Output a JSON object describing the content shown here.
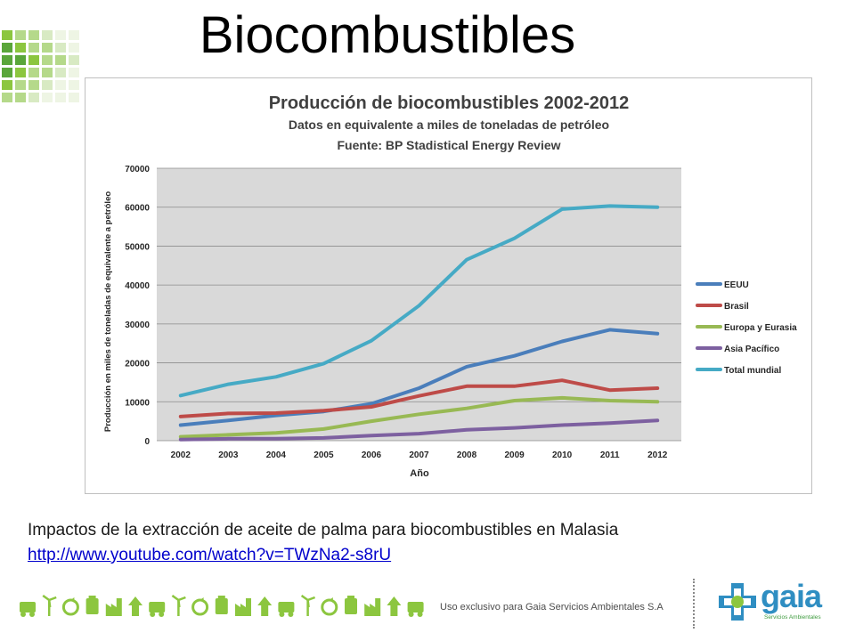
{
  "slide": {
    "title": "Biocombustibles",
    "caption": "Impactos de la extracción de aceite de palma para biocombustibles en Malasia",
    "link": "http://www.youtube.com/watch?v=TWzNa2-s8rU"
  },
  "footer": {
    "text": "Uso exclusivo para Gaia Servicios Ambientales S.A",
    "logo_word": "gaia",
    "logo_sub": "Servicios Ambientales",
    "icons": [
      "truck-icon",
      "wind-turbine-icon",
      "recycle-icon",
      "power-plug-icon",
      "factory-icon",
      "shopping-cart-icon",
      "trash-bin-icon",
      "palm-tree-icon",
      "airplane-icon",
      "battery-icon",
      "bus-icon",
      "bicycle-icon",
      "house-icon",
      "globe-icon",
      "bottle-icon",
      "car-icon",
      "hammer-icon",
      "sun-icon",
      "landscape-icon"
    ]
  },
  "colors": {
    "EEUU": "#4a7ebb",
    "Brasil": "#be4b48",
    "Europa y Eurasia": "#98b954",
    "Asia Pacífico": "#7d60a0",
    "Total mundial": "#46aac5",
    "plot_bg": "#d9d9d9",
    "logo_green": "#8cc63f",
    "gaia_blue": "#2f8ec2"
  },
  "chart_data": {
    "type": "line",
    "title": "Producción de biocombustibles 2002-2012",
    "subtitle_1": "Datos en equivalente a miles de toneladas de petróleo",
    "subtitle_2": "Fuente: BP Stadistical Energy Review",
    "xlabel": "Año",
    "ylabel": "Producción en miles de toneladas de equivalente a petróleo",
    "categories": [
      "2002",
      "2003",
      "2004",
      "2005",
      "2006",
      "2007",
      "2008",
      "2009",
      "2010",
      "2011",
      "2012"
    ],
    "ylim": [
      0,
      70000
    ],
    "yticks": [
      "0",
      "10000",
      "20000",
      "30000",
      "40000",
      "50000",
      "60000",
      "70000"
    ],
    "grid": true,
    "legend_position": "right",
    "series": [
      {
        "name": "EEUU",
        "values": [
          4000,
          5200,
          6500,
          7500,
          9500,
          13500,
          19000,
          21800,
          25500,
          28500,
          27500
        ]
      },
      {
        "name": "Brasil",
        "values": [
          6200,
          7000,
          7100,
          7700,
          8700,
          11500,
          14000,
          14000,
          15500,
          13000,
          13500
        ]
      },
      {
        "name": "Europa y Eurasia",
        "values": [
          1000,
          1500,
          2000,
          3000,
          5000,
          6800,
          8300,
          10300,
          11000,
          10300,
          10000
        ]
      },
      {
        "name": "Asia Pacífico",
        "values": [
          300,
          500,
          500,
          700,
          1300,
          1800,
          2800,
          3300,
          4000,
          4500,
          5200
        ]
      },
      {
        "name": "Total mundial",
        "values": [
          11600,
          14500,
          16400,
          19800,
          25700,
          34700,
          46500,
          52000,
          59500,
          60300,
          60000
        ]
      }
    ]
  }
}
